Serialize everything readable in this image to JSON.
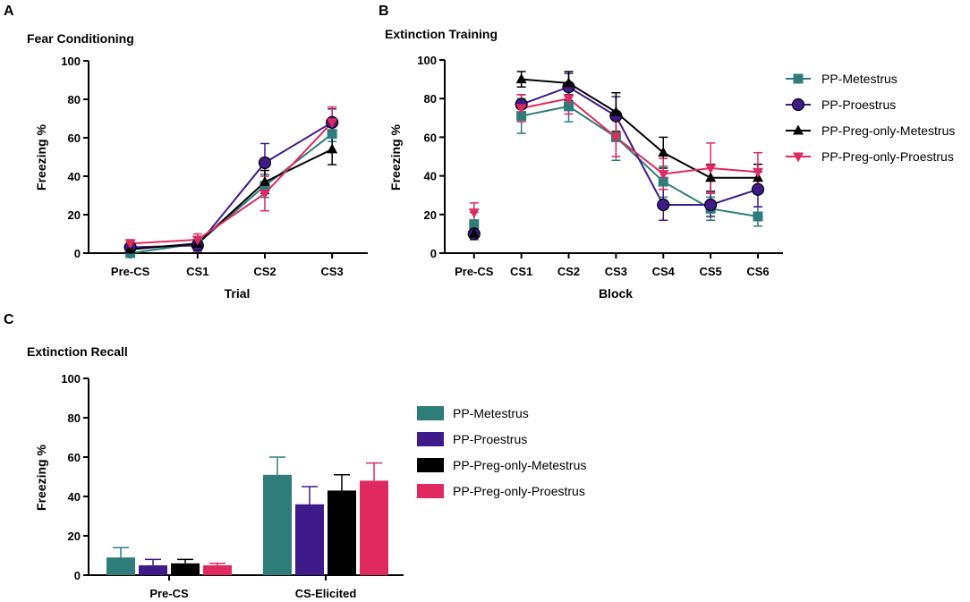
{
  "colors": {
    "metestrus": "#2e7d7b",
    "proestrus": "#3f1a8a",
    "preg_metestrus": "#000000",
    "preg_proestrus": "#e0295e"
  },
  "chart_data": [
    {
      "panel": "A",
      "type": "line",
      "title": "Fear Conditioning",
      "xlabel": "Trial",
      "ylabel": "Freezing %",
      "ylim": [
        0,
        100
      ],
      "yticks": [
        0,
        20,
        40,
        60,
        80,
        100
      ],
      "categories": [
        "Pre-CS",
        "CS1",
        "CS2",
        "CS3"
      ],
      "series": [
        {
          "name": "PP-Metestrus",
          "marker": "square",
          "values": [
            0,
            5,
            35,
            62
          ],
          "errors": [
            1,
            2,
            6,
            4
          ]
        },
        {
          "name": "PP-Proestrus",
          "marker": "circle",
          "values": [
            3,
            4,
            47,
            68
          ],
          "errors": [
            2,
            3,
            10,
            7
          ]
        },
        {
          "name": "PP-Preg-only-Metestrus",
          "marker": "triangle-up",
          "values": [
            2,
            5,
            37,
            54
          ],
          "errors": [
            2,
            2,
            6,
            8
          ]
        },
        {
          "name": "PP-Preg-only-Proestrus",
          "marker": "triangle-down",
          "values": [
            5,
            7,
            31,
            68
          ],
          "errors": [
            2,
            3,
            9,
            8
          ]
        }
      ]
    },
    {
      "panel": "B",
      "type": "line",
      "title": "Extinction Training",
      "xlabel": "Block",
      "ylabel": "Freezing %",
      "ylim": [
        0,
        100
      ],
      "yticks": [
        0,
        20,
        40,
        60,
        80,
        100
      ],
      "categories": [
        "Pre-CS",
        "CS1",
        "CS2",
        "CS3",
        "CS4",
        "CS5",
        "CS6"
      ],
      "connect_from_index": 1,
      "legend": "right",
      "series": [
        {
          "name": "PP-Metestrus",
          "marker": "square",
          "values": [
            15,
            71,
            76,
            60,
            37,
            23,
            19
          ],
          "errors": [
            6,
            9,
            8,
            12,
            8,
            6,
            5
          ]
        },
        {
          "name": "PP-Proestrus",
          "marker": "circle",
          "values": [
            10,
            77,
            86,
            71,
            25,
            25,
            33
          ],
          "errors": [
            3,
            5,
            7,
            10,
            8,
            6,
            9
          ]
        },
        {
          "name": "PP-Preg-only-Metestrus",
          "marker": "triangle-up",
          "values": [
            10,
            90,
            88,
            73,
            52,
            39,
            39
          ],
          "errors": [
            2,
            4,
            6,
            10,
            8,
            7,
            7
          ]
        },
        {
          "name": "PP-Preg-only-Proestrus",
          "marker": "triangle-down",
          "values": [
            21,
            75,
            80,
            60,
            41,
            44,
            42
          ],
          "errors": [
            5,
            7,
            8,
            10,
            8,
            13,
            10
          ]
        }
      ]
    },
    {
      "panel": "C",
      "type": "bar",
      "title": "Extinction Recall",
      "ylabel": "Freezing %",
      "ylim": [
        0,
        100
      ],
      "yticks": [
        0,
        20,
        40,
        60,
        80,
        100
      ],
      "categories": [
        "Pre-CS",
        "CS-Elicited"
      ],
      "legend": "right",
      "series": [
        {
          "name": "PP-Metestrus",
          "values": [
            9,
            51
          ],
          "errors": [
            5,
            9
          ]
        },
        {
          "name": "PP-Proestrus",
          "values": [
            5,
            36
          ],
          "errors": [
            3,
            9
          ]
        },
        {
          "name": "PP-Preg-only-Metestrus",
          "values": [
            6,
            43
          ],
          "errors": [
            2,
            8
          ]
        },
        {
          "name": "PP-Preg-only-Proestrus",
          "values": [
            5,
            48
          ],
          "errors": [
            1,
            9
          ]
        }
      ]
    }
  ]
}
